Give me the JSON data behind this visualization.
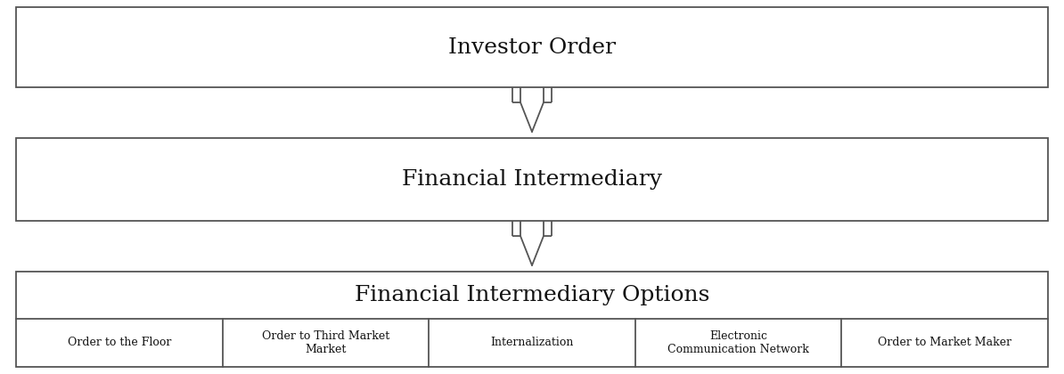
{
  "background_color": "#ffffff",
  "box1_label": "Investor Order",
  "box2_label": "Financial Intermediary",
  "box3_label": "Financial Intermediary Options",
  "options": [
    "Order to the Floor",
    "Order to Third Market\nMarket",
    "Internalization",
    "Electronic\nCommunication Network",
    "Order to Market Maker"
  ],
  "box_edge_color": "#555555",
  "box_face_color": "#ffffff",
  "arrow_color": "#555555",
  "text_color": "#111111",
  "title_fontsize": 18,
  "option_fontsize": 9,
  "fig_width": 11.94,
  "fig_height": 4.2
}
